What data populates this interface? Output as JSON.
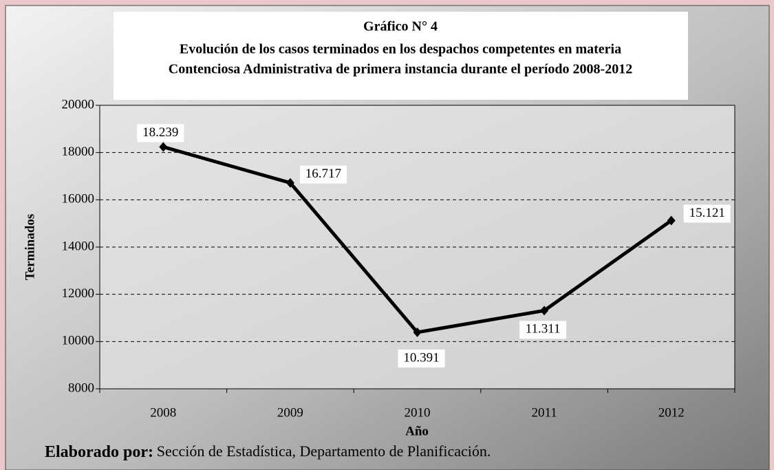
{
  "chart_data": {
    "type": "line",
    "title": "Gráfico N° 4",
    "subtitle": [
      "Evolución de los casos terminados en los despachos competentes en materia",
      "Contenciosa Administrativa de primera instancia durante el período 2008-2012"
    ],
    "x_label": "Año",
    "y_label": "Terminados",
    "categories": [
      "2008",
      "2009",
      "2010",
      "2011",
      "2012"
    ],
    "series": [
      {
        "name": "Terminados",
        "color": "#000000",
        "values": [
          18239,
          16717,
          10391,
          11311,
          15121
        ],
        "value_labels": [
          "18.239",
          "16.717",
          "10.391",
          "11.311",
          "15.121"
        ]
      }
    ],
    "ylim": [
      8000,
      20000
    ],
    "yticks": [
      8000,
      10000,
      12000,
      14000,
      16000,
      18000,
      20000
    ],
    "grid": true,
    "source_label": "Elaborado por:",
    "source": "Sección de Estadística, Departamento de Planificación."
  }
}
